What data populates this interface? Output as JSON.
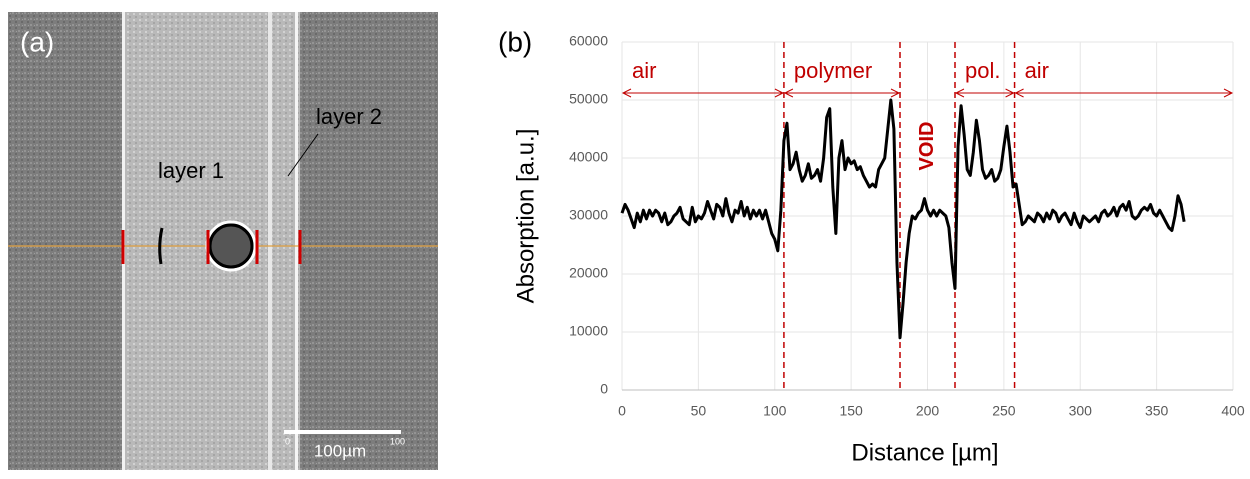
{
  "image_panel": {
    "label": "(a)",
    "annotations": [
      "layer 1",
      "layer 2"
    ],
    "scale_bar": {
      "label": "100µm",
      "start": "0",
      "end": "100"
    }
  },
  "chart_data": {
    "type": "line",
    "panel_label": "(b)",
    "x_label": "Distance [µm]",
    "y_label": "Absorption [a.u.]",
    "xlim": [
      0,
      400
    ],
    "xticks": [
      0,
      50,
      100,
      150,
      200,
      250,
      300,
      350,
      400
    ],
    "ylim": [
      0,
      60000
    ],
    "yticks": [
      0,
      10000,
      20000,
      30000,
      40000,
      50000,
      60000
    ],
    "grid": true,
    "annotation_color": "#c00000",
    "regions": [
      {
        "label": "air",
        "from": 0,
        "to": 106,
        "arrow": true,
        "orientation": "horizontal"
      },
      {
        "label": "polymer",
        "from": 106,
        "to": 182,
        "arrow": true,
        "orientation": "horizontal"
      },
      {
        "label": "VOID",
        "from": 182,
        "to": 218,
        "arrow": false,
        "orientation": "vertical"
      },
      {
        "label": "pol.",
        "from": 218,
        "to": 257,
        "arrow": true,
        "orientation": "horizontal"
      },
      {
        "label": "air",
        "from": 257,
        "to": 400,
        "arrow": true,
        "orientation": "horizontal"
      }
    ],
    "x": [
      0,
      2,
      4,
      6,
      8,
      10,
      12,
      14,
      16,
      18,
      20,
      22,
      24,
      26,
      28,
      30,
      32,
      34,
      36,
      38,
      40,
      42,
      44,
      46,
      48,
      50,
      52,
      54,
      56,
      58,
      60,
      62,
      64,
      66,
      68,
      70,
      72,
      74,
      76,
      78,
      80,
      82,
      84,
      86,
      88,
      90,
      92,
      94,
      96,
      98,
      100,
      102,
      104,
      106,
      108,
      110,
      112,
      114,
      116,
      118,
      120,
      122,
      124,
      126,
      128,
      130,
      132,
      134,
      136,
      138,
      140,
      142,
      144,
      146,
      148,
      150,
      152,
      154,
      156,
      158,
      160,
      162,
      164,
      166,
      168,
      170,
      172,
      174,
      176,
      178,
      180,
      182,
      184,
      186,
      188,
      190,
      192,
      194,
      196,
      198,
      200,
      202,
      204,
      206,
      208,
      210,
      212,
      214,
      216,
      218,
      220,
      222,
      224,
      226,
      228,
      230,
      232,
      234,
      236,
      238,
      240,
      242,
      244,
      246,
      248,
      250,
      252,
      254,
      256,
      258,
      260,
      262,
      264,
      266,
      268,
      270,
      272,
      274,
      276,
      278,
      280,
      282,
      284,
      286,
      288,
      290,
      292,
      294,
      296,
      298,
      300,
      302,
      304,
      306,
      308,
      310,
      312,
      314,
      316,
      318,
      320,
      322,
      324,
      326,
      328,
      330,
      332,
      334,
      336,
      338,
      340,
      342,
      344,
      346,
      348,
      350,
      352,
      354,
      356,
      358,
      360,
      362,
      364,
      366,
      368
    ],
    "series": [
      {
        "color": "#000000",
        "values": [
          30500,
          32000,
          31000,
          29500,
          28000,
          30500,
          29000,
          31000,
          29500,
          31000,
          30000,
          31000,
          30500,
          29000,
          30500,
          28500,
          29000,
          30000,
          30500,
          31500,
          29500,
          29000,
          28500,
          31500,
          29000,
          30000,
          29500,
          30500,
          32500,
          31000,
          29500,
          32000,
          31500,
          30000,
          33000,
          30500,
          29000,
          31000,
          30500,
          32500,
          30000,
          31500,
          29500,
          31000,
          30000,
          31000,
          29500,
          31000,
          29000,
          27000,
          26000,
          24000,
          31000,
          43000,
          46000,
          38000,
          39000,
          41000,
          38000,
          36000,
          37000,
          39000,
          36500,
          37000,
          38000,
          36000,
          40000,
          47000,
          48500,
          35000,
          27000,
          40000,
          43000,
          38000,
          40000,
          39000,
          39500,
          38000,
          38500,
          37000,
          36000,
          35000,
          35500,
          35000,
          38000,
          39000,
          40000,
          45000,
          50000,
          45000,
          22000,
          9000,
          15000,
          22000,
          27000,
          30000,
          29500,
          30500,
          31000,
          33000,
          31000,
          30000,
          31000,
          30000,
          31000,
          30500,
          30000,
          28000,
          22000,
          17500,
          42000,
          49000,
          44000,
          38000,
          37000,
          41000,
          46500,
          43000,
          38000,
          36500,
          37000,
          38000,
          36000,
          36500,
          38000,
          42000,
          45500,
          41000,
          35000,
          35500,
          32000,
          28500,
          29000,
          30000,
          29500,
          29000,
          30500,
          30000,
          29000,
          30500,
          29500,
          31000,
          30500,
          29000,
          30000,
          30500,
          29500,
          28500,
          30500,
          29000,
          28000,
          30000,
          29500,
          29000,
          29500,
          30000,
          29000,
          30500,
          31000,
          30000,
          30500,
          31500,
          30000,
          31500,
          32000,
          31000,
          32500,
          30000,
          29500,
          30000,
          31000,
          31500,
          31000,
          32000,
          30500,
          30000,
          31000,
          30000,
          29000,
          28000,
          27500,
          30000,
          33500,
          32000,
          29000
        ]
      }
    ]
  }
}
